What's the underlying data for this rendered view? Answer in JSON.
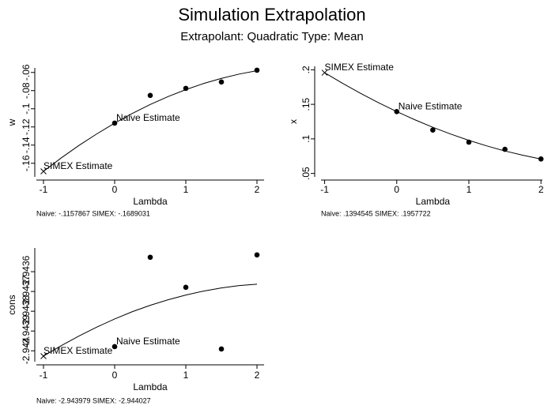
{
  "header": {
    "title": "Simulation Extrapolation",
    "subtitle": "Extrapolant: Quadratic  Type: Mean"
  },
  "chart_data": [
    {
      "type": "scatter",
      "ylabel": "w",
      "xlabel": "Lambda",
      "xlim": [
        -1.1,
        2.1
      ],
      "xticks": [
        -1,
        0,
        1,
        2
      ],
      "ylim": [
        -0.175,
        -0.055
      ],
      "yticks": [
        {
          "value": -0.16,
          "label": "-.16"
        },
        {
          "value": -0.14,
          "label": "-.14"
        },
        {
          "value": -0.12,
          "label": "-.12"
        },
        {
          "value": -0.1,
          "label": "-.1"
        },
        {
          "value": -0.08,
          "label": "-.08"
        },
        {
          "value": -0.06,
          "label": "-.06"
        }
      ],
      "x": [
        0,
        0.5,
        1,
        1.5,
        2
      ],
      "values": [
        -0.1157867,
        -0.0853,
        -0.0775,
        -0.0705,
        -0.0575
      ],
      "simex": {
        "x": -1,
        "value": -0.1689031
      },
      "fit": {
        "x": [
          -1,
          -0.75,
          -0.5,
          -0.25,
          0,
          0.25,
          0.5,
          0.75,
          1,
          1.25,
          1.5,
          1.75,
          2
        ],
        "values": [
          -0.1689,
          -0.1541,
          -0.1403,
          -0.1276,
          -0.1158,
          -0.1051,
          -0.0953,
          -0.0866,
          -0.0789,
          -0.0722,
          -0.0665,
          -0.0618,
          -0.058
        ]
      },
      "naive_annotation": "Naive Estimate",
      "simex_annotation": "SIMEX Estimate",
      "note": "Naive: -.1157867   SIMEX: -.1689031",
      "color": "#000000"
    },
    {
      "type": "scatter",
      "ylabel": "x",
      "xlabel": "Lambda",
      "xlim": [
        -1.05,
        2.02
      ],
      "xticks": [
        -1,
        0,
        1,
        2
      ],
      "ylim": [
        0.045,
        0.205
      ],
      "yticks": [
        {
          "value": 0.05,
          "label": ".05"
        },
        {
          "value": 0.1,
          "label": ".1"
        },
        {
          "value": 0.15,
          "label": ".15"
        },
        {
          "value": 0.2,
          "label": ".2"
        }
      ],
      "x": [
        0,
        0.5,
        1,
        1.5,
        2
      ],
      "values": [
        0.1394545,
        0.1128,
        0.0953,
        0.0849,
        0.0709
      ],
      "simex": {
        "x": -1,
        "value": 0.1957722
      },
      "fit": {
        "x": [
          -1,
          -0.75,
          -0.5,
          -0.25,
          0,
          0.25,
          0.5,
          0.75,
          1,
          1.25,
          1.5,
          1.75,
          2
        ],
        "values": [
          0.1958,
          0.1804,
          0.1658,
          0.1522,
          0.1395,
          0.1277,
          0.1168,
          0.1069,
          0.0979,
          0.0898,
          0.0825,
          0.0763,
          0.0709
        ]
      },
      "naive_annotation": "Naive Estimate",
      "simex_annotation": "SIMEX Estimate",
      "note": "Naive: .1394545   SIMEX: .1957722",
      "color": "#000000"
    },
    {
      "type": "scatter",
      "ylabel": "cons",
      "xlabel": "Lambda",
      "xlim": [
        -1.1,
        2.1
      ],
      "xticks": [
        -1,
        0,
        1,
        2
      ],
      "ylim": [
        -2.944055,
        -2.94348
      ],
      "yticks": [
        -2.944,
        -2.9439,
        -2.9438,
        -2.9437,
        -2.9436
      ],
      "x": [
        0,
        0.5,
        1,
        1.5,
        2
      ],
      "values": [
        -2.943979,
        -2.943527,
        -2.943679,
        -2.943991,
        -2.943515
      ],
      "simex": {
        "x": -1,
        "value": -2.944027
      },
      "fit": {
        "x": [
          -1,
          -0.75,
          -0.5,
          -0.25,
          0,
          0.25,
          0.5,
          0.75,
          1,
          1.25,
          1.5,
          1.75,
          2
        ],
        "values": [
          -2.944027,
          -2.943974,
          -2.943925,
          -2.94388,
          -2.943839,
          -2.943802,
          -2.94377,
          -2.943742,
          -2.943718,
          -2.943698,
          -2.943682,
          -2.94367,
          -2.943663
        ]
      },
      "naive_annotation": "Naive Estimate",
      "simex_annotation": "SIMEX Estimate",
      "note": "Naive: -2.943979   SIMEX: -2.944027",
      "color": "#000000"
    }
  ]
}
